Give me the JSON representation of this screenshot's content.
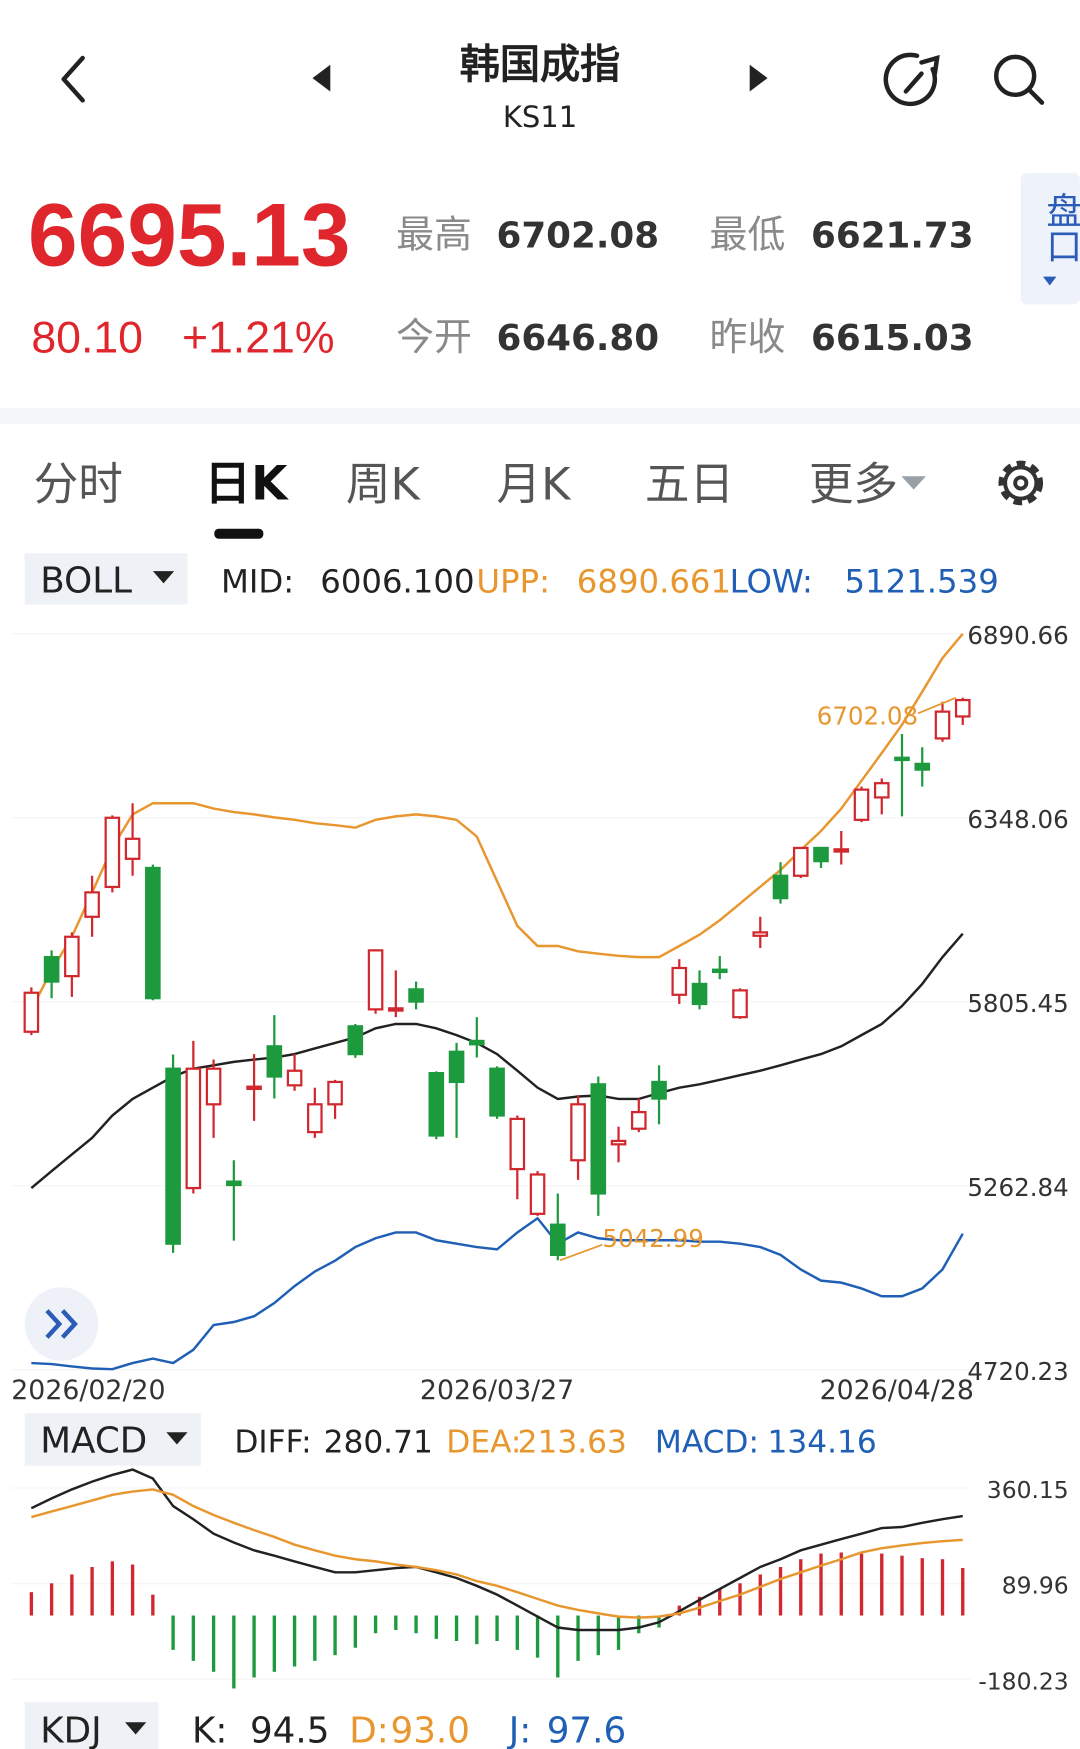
{
  "header": {
    "title": "韩国成指",
    "code": "KS11"
  },
  "quote": {
    "price": "6695.13",
    "change": "80.10",
    "change_pct": "+1.21%",
    "fields": [
      {
        "label": "最高",
        "value": "6702.08"
      },
      {
        "label": "最低",
        "value": "6621.73"
      },
      {
        "label": "今开",
        "value": "6646.80"
      },
      {
        "label": "昨收",
        "value": "6615.03"
      }
    ]
  },
  "side_tab": "盘口",
  "tabs": [
    "分时",
    "日K",
    "周K",
    "月K",
    "五日",
    "更多"
  ],
  "boll_bar": {
    "name": "BOLL",
    "items": [
      {
        "label": "MID:",
        "value": "6006.100",
        "color": "#222222"
      },
      {
        "label": "UPP:",
        "value": "6890.661",
        "color": "#e8962e"
      },
      {
        "label": "LOW:",
        "value": "5121.539",
        "color": "#1f5fb5"
      }
    ]
  },
  "macd_bar": {
    "name": "MACD",
    "items": [
      {
        "label": "DIFF:",
        "value": "280.71",
        "color": "#222222"
      },
      {
        "label": "DEA:",
        "value": "213.63",
        "color": "#e8962e"
      },
      {
        "label": "MACD:",
        "value": "134.16",
        "color": "#1f5fb5"
      }
    ]
  },
  "kdj_bar": {
    "name": "KDJ",
    "items": [
      {
        "label": "K:",
        "value": "94.5",
        "color": "#222222"
      },
      {
        "label": "D:",
        "value": "93.0",
        "color": "#e8962e"
      },
      {
        "label": "J:",
        "value": "97.6",
        "color": "#1f5fb5"
      }
    ]
  },
  "chart_data": [
    {
      "type": "candlestick",
      "categories": [
        "2026/02/20",
        null,
        null,
        null,
        null,
        null,
        null,
        null,
        null,
        null,
        null,
        null,
        null,
        null,
        null,
        null,
        null,
        null,
        null,
        null,
        null,
        null,
        null,
        "2026/03/27",
        null,
        null,
        null,
        null,
        null,
        null,
        null,
        null,
        null,
        null,
        null,
        null,
        null,
        null,
        null,
        null,
        null,
        null,
        null,
        null,
        null,
        null,
        "2026/04/28"
      ],
      "open": [
        5717,
        5937,
        5881,
        6056,
        6144,
        6227,
        6200,
        5608,
        5256,
        5503,
        5275,
        5550,
        5674,
        5559,
        5421,
        5503,
        5733,
        5783,
        5780,
        5842,
        5595,
        5658,
        5690,
        5608,
        5312,
        5180,
        5148,
        5338,
        5562,
        5385,
        5431,
        5569,
        5826,
        5858,
        5900,
        5760,
        6000,
        6177,
        6177,
        6259,
        6250,
        6342,
        6408,
        6525,
        6507,
        6582,
        6646.8
      ],
      "close": [
        5832,
        5865,
        5997,
        6128,
        6348,
        6286,
        5816,
        5092,
        5608,
        5608,
        5265,
        5555,
        5585,
        5602,
        5503,
        5569,
        5651,
        5957,
        5786,
        5806,
        5411,
        5569,
        5680,
        5470,
        5460,
        5296,
        5059,
        5503,
        5240,
        5395,
        5480,
        5520,
        5905,
        5799,
        5895,
        5839,
        6010,
        6111,
        6259,
        6220,
        6255,
        6431,
        6450,
        6520,
        6490,
        6661,
        6695.13
      ],
      "high": [
        5848,
        5957,
        6010,
        6177,
        6355,
        6391,
        6210,
        5650,
        5690,
        5635,
        5338,
        5651,
        5766,
        5651,
        5552,
        5575,
        5740,
        5960,
        5898,
        5865,
        5600,
        5684,
        5760,
        5615,
        5470,
        5306,
        5240,
        5530,
        5585,
        5437,
        5520,
        5618,
        5931,
        5898,
        5940,
        5845,
        6056,
        6217,
        6262,
        6262,
        6309,
        6440,
        6464,
        6595,
        6556,
        6690,
        6702.08
      ],
      "low": [
        5707,
        5816,
        5820,
        5997,
        6128,
        6177,
        5810,
        5065,
        5240,
        5404,
        5101,
        5454,
        5520,
        5543,
        5404,
        5460,
        5640,
        5770,
        5760,
        5783,
        5400,
        5404,
        5641,
        5460,
        5223,
        5174,
        5042.99,
        5280,
        5174,
        5332,
        5421,
        5444,
        5799,
        5783,
        5872,
        5755,
        5964,
        6095,
        6170,
        6200,
        6210,
        6335,
        6358,
        6352,
        6440,
        6572,
        6621.73
      ],
      "up_color": "#d0282e",
      "down_color": "#1e9a3e",
      "series": [
        {
          "name": "UPP",
          "color": "#e8962e",
          "values": [
            5783,
            5898,
            5997,
            6128,
            6260,
            6358,
            6391,
            6391,
            6391,
            6375,
            6365,
            6358,
            6349,
            6342,
            6332,
            6326,
            6319,
            6342,
            6352,
            6358,
            6352,
            6342,
            6293,
            6161,
            6029,
            5970,
            5970,
            5954,
            5947,
            5941,
            5937,
            5937,
            5970,
            6003,
            6046,
            6095,
            6145,
            6194,
            6253,
            6309,
            6375,
            6457,
            6539,
            6622,
            6720,
            6819,
            6890.661
          ]
        },
        {
          "name": "MID",
          "color": "#222222",
          "values": [
            5256,
            5306,
            5355,
            5404,
            5470,
            5519,
            5552,
            5585,
            5608,
            5618,
            5628,
            5635,
            5641,
            5651,
            5668,
            5684,
            5700,
            5727,
            5740,
            5740,
            5727,
            5707,
            5684,
            5651,
            5602,
            5552,
            5519,
            5526,
            5529,
            5519,
            5519,
            5536,
            5552,
            5562,
            5575,
            5589,
            5602,
            5618,
            5635,
            5651,
            5674,
            5707,
            5740,
            5793,
            5858,
            5937,
            6006.1
          ]
        },
        {
          "name": "LOW",
          "color": "#1f5fb5",
          "values": [
            4740,
            4737,
            4730,
            4724,
            4722,
            4740,
            4753,
            4740,
            4779,
            4852,
            4861,
            4878,
            4917,
            4967,
            5010,
            5042,
            5082,
            5108,
            5125,
            5125,
            5102,
            5092,
            5082,
            5075,
            5125,
            5167,
            5092,
            5125,
            5108,
            5102,
            5102,
            5102,
            5102,
            5098,
            5098,
            5092,
            5082,
            5059,
            5016,
            4983,
            4977,
            4960,
            4937,
            4937,
            4960,
            5016,
            5121.539
          ]
        }
      ],
      "max_label": "6702.08",
      "min_label": "5042.99",
      "annotation_color": "#e8962e",
      "ylim": [
        4720.23,
        6957
      ],
      "yticks": [
        4720.23,
        5262.84,
        5805.45,
        6348.06,
        6890.66
      ]
    },
    {
      "type": "macd",
      "values": [
        66,
        91,
        116,
        137,
        153,
        144,
        59,
        -97,
        -128,
        -159,
        -206,
        -175,
        -159,
        -144,
        -128,
        -112,
        -91,
        -50,
        -41,
        -50,
        -66,
        -72,
        -81,
        -72,
        -97,
        -119,
        -175,
        -128,
        -112,
        -97,
        -50,
        -34,
        28,
        53,
        75,
        91,
        116,
        137,
        159,
        175,
        178,
        175,
        175,
        169,
        162,
        159,
        134.16
      ],
      "up_color": "#d0282e",
      "down_color": "#1e9a3e",
      "series": [
        {
          "name": "DIFF",
          "color": "#222222",
          "values": [
            303,
            331,
            356,
            378,
            397,
            412,
            387,
            309,
            272,
            231,
            206,
            184,
            169,
            153,
            137,
            122,
            122,
            128,
            134,
            137,
            122,
            106,
            84,
            59,
            28,
            -3,
            -34,
            -41,
            -41,
            -41,
            -34,
            -19,
            12,
            44,
            75,
            106,
            137,
            159,
            184,
            200,
            216,
            231,
            247,
            250,
            262,
            272,
            280.71
          ]
        },
        {
          "name": "DEA",
          "color": "#e8962e",
          "values": [
            278,
            294,
            309,
            325,
            341,
            350,
            356,
            341,
            309,
            284,
            262,
            241,
            222,
            200,
            184,
            169,
            159,
            153,
            144,
            137,
            128,
            116,
            97,
            84,
            66,
            47,
            28,
            16,
            6,
            -3,
            -6,
            -3,
            6,
            22,
            41,
            59,
            81,
            103,
            122,
            141,
            159,
            178,
            190,
            198,
            205,
            210,
            213.63
          ]
        }
      ],
      "ylim": [
        -210,
        420
      ],
      "yticks": [
        -180.23,
        89.96,
        360.15
      ]
    }
  ]
}
